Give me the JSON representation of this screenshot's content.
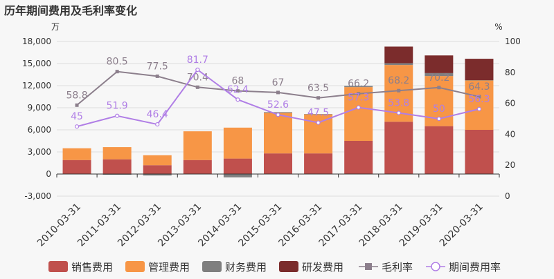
{
  "chart_data": {
    "type": "bar",
    "title": "历年期间费用及毛利率变化",
    "categories": [
      "2010-03-31",
      "2011-03-31",
      "2012-03-31",
      "2013-03-31",
      "2014-03-31",
      "2015-03-31",
      "2016-03-31",
      "2017-03-31",
      "2018-03-31",
      "2019-03-31",
      "2020-03-31"
    ],
    "y_left": {
      "unit": "万",
      "ylim": [
        -3000,
        18000
      ],
      "ticks": [
        -3000,
        0,
        3000,
        6000,
        9000,
        12000,
        15000,
        18000
      ],
      "tick_labels": [
        "-3,000",
        "0",
        "3,000",
        "6,000",
        "9,000",
        "12,000",
        "15,000",
        "18,000"
      ]
    },
    "y_right": {
      "unit": "%",
      "ylim": [
        0,
        100
      ],
      "ticks": [
        0,
        20,
        40,
        60,
        80,
        100
      ]
    },
    "grid": "horizontal",
    "legend_position": "bottom",
    "bar_series": [
      {
        "name": "销售费用",
        "color": "#c0504d",
        "values": [
          1900,
          2000,
          1200,
          1900,
          2100,
          2800,
          2800,
          4500,
          7100,
          6500,
          6000
        ]
      },
      {
        "name": "管理费用",
        "color": "#f79646",
        "values": [
          1600,
          1650,
          1350,
          3900,
          4200,
          5500,
          5300,
          7300,
          7700,
          6800,
          6700
        ]
      },
      {
        "name": "财务费用",
        "color": "#7f7f7f",
        "values": [
          0,
          -100,
          -200,
          0,
          -450,
          100,
          50,
          150,
          250,
          400,
          50
        ]
      },
      {
        "name": "研发费用",
        "color": "#7b2c2c",
        "values": [
          0,
          0,
          0,
          0,
          0,
          0,
          0,
          0,
          2250,
          2400,
          2900
        ]
      }
    ],
    "line_series": [
      {
        "name": "毛利率",
        "color": "#8c7f8c",
        "values": [
          58.8,
          80.5,
          77.5,
          70.4,
          68,
          67,
          63.5,
          66.2,
          68.2,
          70.2,
          64.3
        ],
        "labels": [
          "58.8",
          "80.5",
          "77.5",
          "70.4",
          "68",
          "67",
          "63.5",
          "66.2",
          "68.2",
          "70.2",
          "64.3"
        ]
      },
      {
        "name": "期间费用率",
        "color": "#b07ee6",
        "values": [
          45,
          51.9,
          46.4,
          81.7,
          62.4,
          52.6,
          47.5,
          57.3,
          53.8,
          50,
          56.3
        ],
        "labels": [
          "45",
          "51.9",
          "46.4",
          "81.7",
          "62.4",
          "52.6",
          "47.5",
          "57.3",
          "53.8",
          "50",
          "56.3"
        ]
      }
    ]
  }
}
